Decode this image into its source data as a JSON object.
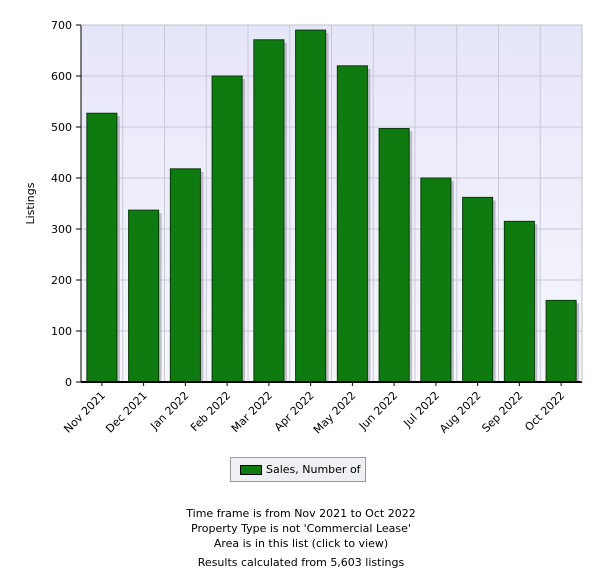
{
  "chart_data": {
    "type": "bar",
    "categories": [
      "Nov 2021",
      "Dec 2021",
      "Jan 2022",
      "Feb 2022",
      "Mar 2022",
      "Apr 2022",
      "May 2022",
      "Jun 2022",
      "Jul 2022",
      "Aug 2022",
      "Sep 2022",
      "Oct 2022"
    ],
    "series": [
      {
        "name": "Sales, Number of",
        "values": [
          527,
          337,
          418,
          600,
          671,
          690,
          620,
          497,
          400,
          362,
          315,
          160
        ]
      }
    ],
    "ylabel": "Listings",
    "ylim": [
      0,
      700
    ],
    "yticks": [
      0,
      100,
      200,
      300,
      400,
      500,
      600,
      700
    ],
    "grid": true,
    "legend": "bottom-center",
    "colors": {
      "bar": "#0f7a0f",
      "plot_bg": "#e9e9f7",
      "grid": "#c8c8d8"
    }
  },
  "legend": {
    "label": "Sales, Number of"
  },
  "footer": {
    "line1": "Time frame is from Nov 2021 to Oct 2022",
    "line2": "Property Type is not 'Commercial Lease'",
    "line3": "Area is in this list (click to view)",
    "line4": "Results calculated from 5,603 listings"
  }
}
